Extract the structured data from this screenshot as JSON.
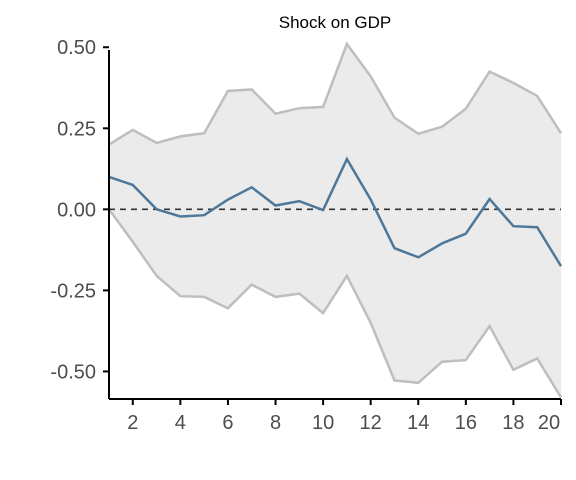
{
  "chart_data": {
    "type": "line",
    "title": "Shock on GDP",
    "xlabel": "",
    "ylabel": "",
    "x": [
      1,
      2,
      3,
      4,
      5,
      6,
      7,
      8,
      9,
      10,
      11,
      12,
      13,
      14,
      15,
      16,
      17,
      18,
      19,
      20
    ],
    "series": [
      {
        "role": "estimate",
        "values": [
          0.1,
          0.075,
          0.0,
          -0.022,
          -0.018,
          0.03,
          0.068,
          0.012,
          0.025,
          -0.002,
          0.155,
          0.03,
          -0.12,
          -0.148,
          -0.105,
          -0.075,
          0.032,
          -0.052,
          -0.055,
          -0.175
        ]
      },
      {
        "role": "upper_bound",
        "values": [
          0.2,
          0.245,
          0.205,
          0.225,
          0.235,
          0.365,
          0.37,
          0.295,
          0.312,
          0.316,
          0.51,
          0.41,
          0.283,
          0.233,
          0.255,
          0.31,
          0.425,
          0.39,
          0.35,
          0.235
        ]
      },
      {
        "role": "lower_bound",
        "values": [
          0.0,
          -0.1,
          -0.205,
          -0.268,
          -0.27,
          -0.305,
          -0.232,
          -0.27,
          -0.26,
          -0.32,
          -0.205,
          -0.35,
          -0.528,
          -0.535,
          -0.47,
          -0.465,
          -0.36,
          -0.495,
          -0.46,
          -0.58
        ]
      }
    ],
    "reference_line": 0,
    "xticks": [
      2,
      4,
      6,
      8,
      10,
      12,
      14,
      16,
      18,
      20
    ],
    "xtick_labels": [
      "2",
      "4",
      "6",
      "8",
      "10",
      "12",
      "14",
      "16",
      "18",
      "20"
    ],
    "yticks": [
      -0.5,
      -0.25,
      0,
      0.25,
      0.5
    ],
    "ytick_labels": [
      "-0.50",
      "-0.25",
      "0.00",
      "0.25",
      "0.50"
    ],
    "xlim": [
      1,
      20
    ],
    "ylim": [
      -0.585,
      0.51
    ],
    "grid": false,
    "colors": {
      "estimate": "#4e7899",
      "band_fill": "#ebebeb",
      "band_edge": "#bebebe",
      "axis": "#000000",
      "zero_line": "#333333"
    }
  }
}
